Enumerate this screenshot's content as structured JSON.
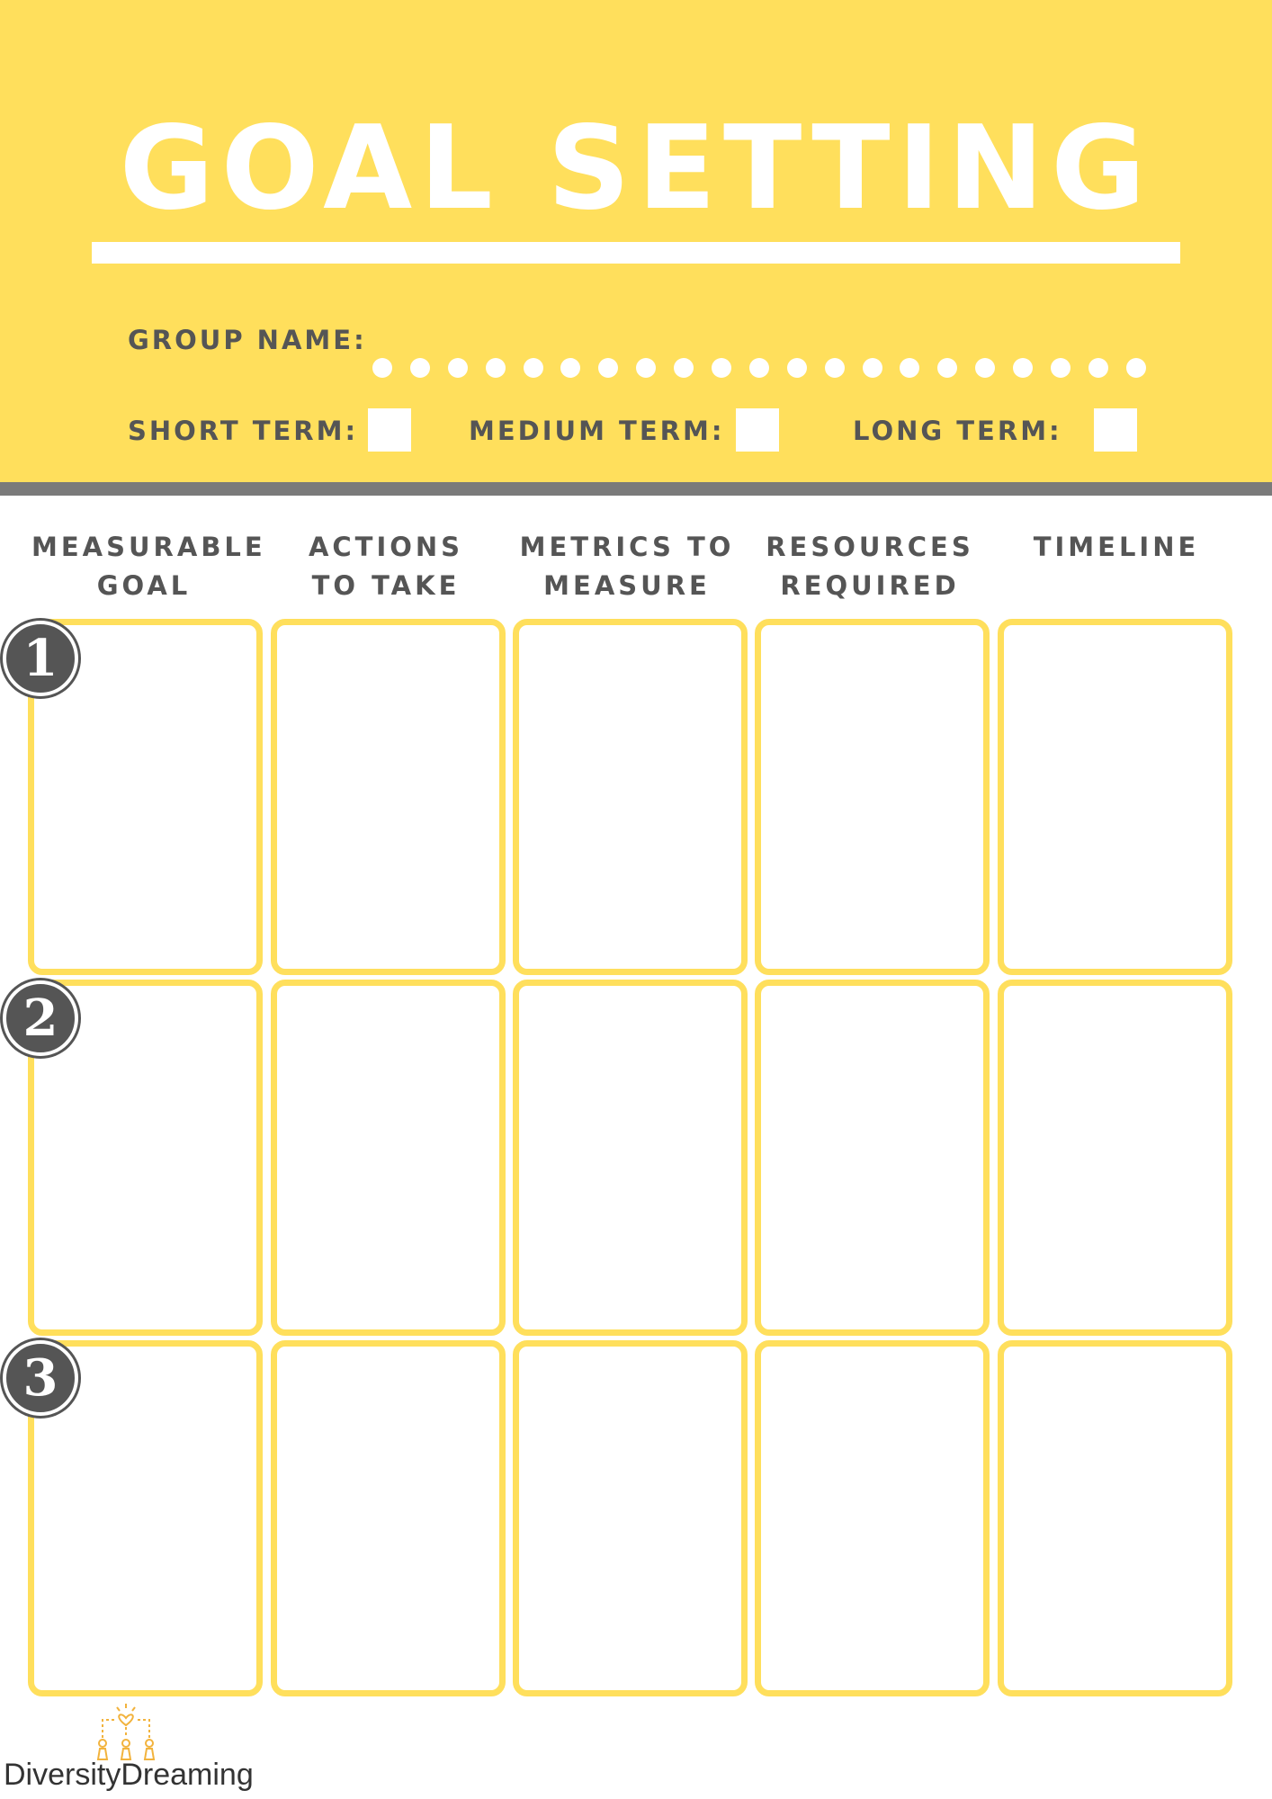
{
  "header": {
    "title": "GOAL SETTING",
    "group_name_label": "GROUP NAME:",
    "term_options": {
      "short": "SHORT TERM:",
      "medium": "MEDIUM TERM:",
      "long": "LONG TERM:"
    }
  },
  "columns": [
    [
      "MEASURABLE",
      "GOAL"
    ],
    [
      "ACTIONS",
      "TO TAKE"
    ],
    [
      "METRICS TO",
      "MEASURE"
    ],
    [
      "RESOURCES",
      "REQUIRED"
    ],
    [
      "TIMELINE"
    ]
  ],
  "rows": [
    "1",
    "2",
    "3"
  ],
  "footer": {
    "brand": "DiversityDreaming",
    "logo_icon": "diversity-dreaming-logo-icon"
  },
  "colors": {
    "accent": "#FFDF5C",
    "text": "#555555",
    "divider": "#7a7a7a"
  }
}
